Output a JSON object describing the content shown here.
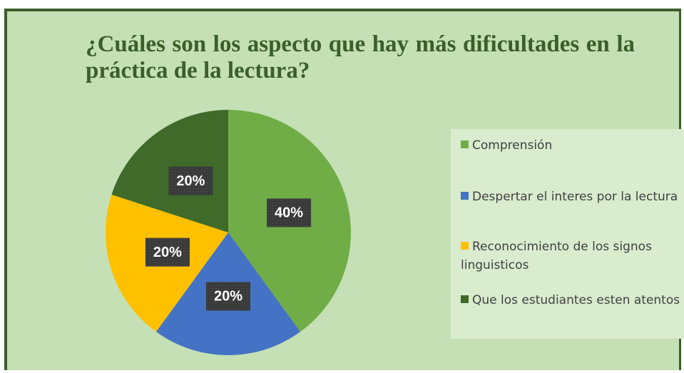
{
  "chart_data": {
    "type": "pie",
    "title": "¿Cuáles son los aspecto que hay más dificultades en la práctica de la lectura?",
    "categories": [
      "Comprensión",
      "Despertar el interes por la lectura",
      "Reconocimiento de los signos linguisticos",
      "Que los estudiantes esten atentos"
    ],
    "values": [
      40,
      20,
      20,
      20
    ],
    "value_labels": [
      "40%",
      "20%",
      "20%",
      "20%"
    ],
    "colors": [
      "#70ad47",
      "#4472c4",
      "#ffc000",
      "#3f6a2a"
    ],
    "legend": "right"
  }
}
